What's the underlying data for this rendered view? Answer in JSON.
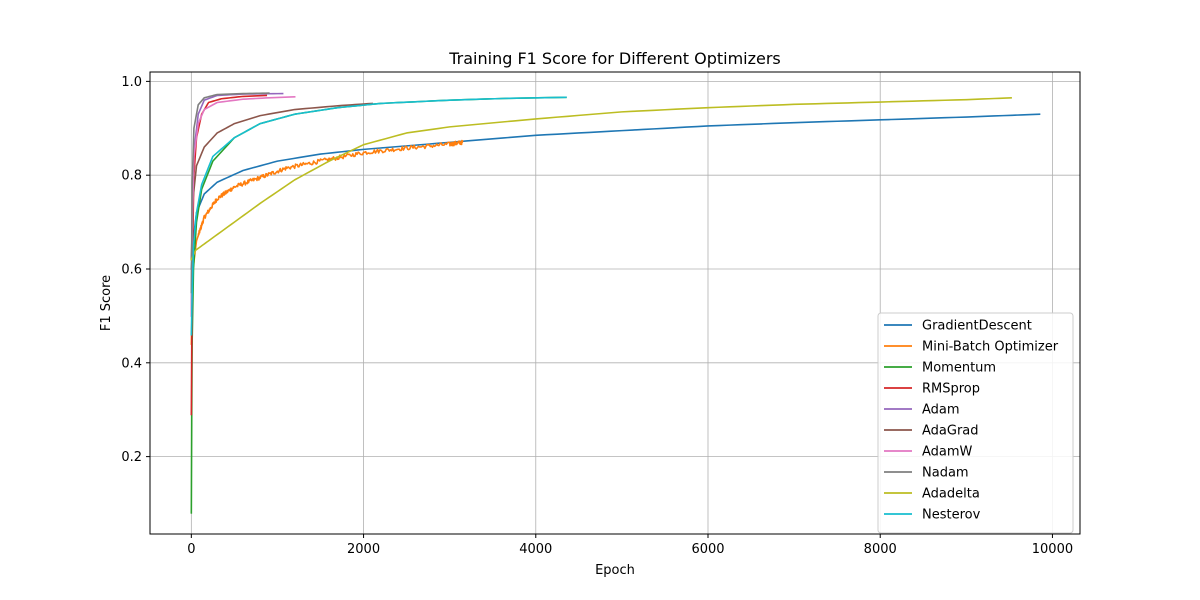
{
  "chart_data": {
    "type": "line",
    "title": "Training F1 Score for Different Optimizers",
    "xlabel": "Epoch",
    "ylabel": "F1 Score",
    "xlim": [
      -480,
      10320
    ],
    "ylim": [
      0.035,
      1.02
    ],
    "xticks": [
      0,
      2000,
      4000,
      6000,
      8000,
      10000
    ],
    "xtick_labels": [
      "0",
      "2000",
      "4000",
      "6000",
      "8000",
      "10000"
    ],
    "yticks": [
      0.2,
      0.4,
      0.6,
      0.8,
      1.0
    ],
    "ytick_labels": [
      "0.2",
      "0.4",
      "0.6",
      "0.8",
      "1.0"
    ],
    "grid": true,
    "legend_position": "lower-right",
    "series": [
      {
        "name": "GradientDescent",
        "color": "#1f77b4",
        "points": [
          [
            0,
            0.6
          ],
          [
            20,
            0.66
          ],
          [
            60,
            0.72
          ],
          [
            150,
            0.76
          ],
          [
            300,
            0.785
          ],
          [
            600,
            0.81
          ],
          [
            1000,
            0.83
          ],
          [
            1500,
            0.845
          ],
          [
            2000,
            0.855
          ],
          [
            3000,
            0.87
          ],
          [
            4000,
            0.885
          ],
          [
            5000,
            0.895
          ],
          [
            6000,
            0.905
          ],
          [
            7000,
            0.912
          ],
          [
            8000,
            0.918
          ],
          [
            9000,
            0.924
          ],
          [
            9850,
            0.93
          ]
        ]
      },
      {
        "name": "Mini-Batch Optimizer",
        "color": "#ff7f0e",
        "noisy": true,
        "points": [
          [
            0,
            0.44
          ],
          [
            20,
            0.6
          ],
          [
            60,
            0.66
          ],
          [
            150,
            0.71
          ],
          [
            300,
            0.75
          ],
          [
            500,
            0.775
          ],
          [
            800,
            0.795
          ],
          [
            1100,
            0.815
          ],
          [
            1500,
            0.83
          ],
          [
            2000,
            0.848
          ],
          [
            2500,
            0.858
          ],
          [
            3000,
            0.866
          ],
          [
            3150,
            0.87
          ]
        ]
      },
      {
        "name": "Momentum",
        "color": "#2ca02c",
        "points": [
          [
            0,
            0.08
          ],
          [
            5,
            0.3
          ],
          [
            10,
            0.45
          ],
          [
            25,
            0.6
          ],
          [
            60,
            0.7
          ],
          [
            120,
            0.77
          ],
          [
            250,
            0.83
          ],
          [
            500,
            0.88
          ],
          [
            800,
            0.91
          ],
          [
            1200,
            0.93
          ],
          [
            1700,
            0.944
          ],
          [
            2200,
            0.953
          ],
          [
            3000,
            0.96
          ],
          [
            3700,
            0.964
          ],
          [
            4350,
            0.966
          ]
        ]
      },
      {
        "name": "RMSprop",
        "color": "#d62728",
        "points": [
          [
            0,
            0.29
          ],
          [
            5,
            0.43
          ],
          [
            10,
            0.6
          ],
          [
            30,
            0.8
          ],
          [
            60,
            0.88
          ],
          [
            120,
            0.93
          ],
          [
            200,
            0.955
          ],
          [
            350,
            0.963
          ],
          [
            600,
            0.968
          ],
          [
            870,
            0.97
          ]
        ]
      },
      {
        "name": "Adam",
        "color": "#9467bd",
        "points": [
          [
            0,
            0.5
          ],
          [
            10,
            0.7
          ],
          [
            30,
            0.85
          ],
          [
            80,
            0.93
          ],
          [
            150,
            0.96
          ],
          [
            300,
            0.97
          ],
          [
            600,
            0.973
          ],
          [
            1060,
            0.974
          ]
        ]
      },
      {
        "name": "AdaGrad",
        "color": "#8c564b",
        "points": [
          [
            0,
            0.62
          ],
          [
            20,
            0.75
          ],
          [
            60,
            0.82
          ],
          [
            150,
            0.86
          ],
          [
            300,
            0.89
          ],
          [
            500,
            0.91
          ],
          [
            800,
            0.927
          ],
          [
            1200,
            0.94
          ],
          [
            1700,
            0.948
          ],
          [
            2100,
            0.953
          ]
        ]
      },
      {
        "name": "AdamW",
        "color": "#e377c2",
        "points": [
          [
            0,
            0.5
          ],
          [
            10,
            0.7
          ],
          [
            30,
            0.84
          ],
          [
            80,
            0.91
          ],
          [
            150,
            0.94
          ],
          [
            300,
            0.955
          ],
          [
            600,
            0.962
          ],
          [
            900,
            0.965
          ],
          [
            1200,
            0.967
          ]
        ]
      },
      {
        "name": "Nadam",
        "color": "#7f7f7f",
        "points": [
          [
            0,
            0.55
          ],
          [
            10,
            0.78
          ],
          [
            30,
            0.9
          ],
          [
            80,
            0.95
          ],
          [
            150,
            0.965
          ],
          [
            300,
            0.972
          ],
          [
            600,
            0.974
          ],
          [
            900,
            0.975
          ]
        ]
      },
      {
        "name": "Adadelta",
        "color": "#bcbd22",
        "points": [
          [
            0,
            0.62
          ],
          [
            50,
            0.64
          ],
          [
            200,
            0.66
          ],
          [
            500,
            0.7
          ],
          [
            800,
            0.74
          ],
          [
            1200,
            0.79
          ],
          [
            1600,
            0.83
          ],
          [
            2000,
            0.865
          ],
          [
            2500,
            0.89
          ],
          [
            3000,
            0.903
          ],
          [
            4000,
            0.92
          ],
          [
            5000,
            0.935
          ],
          [
            6000,
            0.944
          ],
          [
            7000,
            0.951
          ],
          [
            8000,
            0.956
          ],
          [
            9000,
            0.961
          ],
          [
            9520,
            0.965
          ]
        ]
      },
      {
        "name": "Nesterov",
        "color": "#17becf",
        "points": [
          [
            0,
            0.46
          ],
          [
            10,
            0.55
          ],
          [
            25,
            0.65
          ],
          [
            60,
            0.72
          ],
          [
            120,
            0.78
          ],
          [
            250,
            0.84
          ],
          [
            500,
            0.88
          ],
          [
            800,
            0.91
          ],
          [
            1200,
            0.93
          ],
          [
            1700,
            0.944
          ],
          [
            2200,
            0.953
          ],
          [
            3000,
            0.96
          ],
          [
            3700,
            0.964
          ],
          [
            4350,
            0.966
          ]
        ]
      }
    ]
  }
}
